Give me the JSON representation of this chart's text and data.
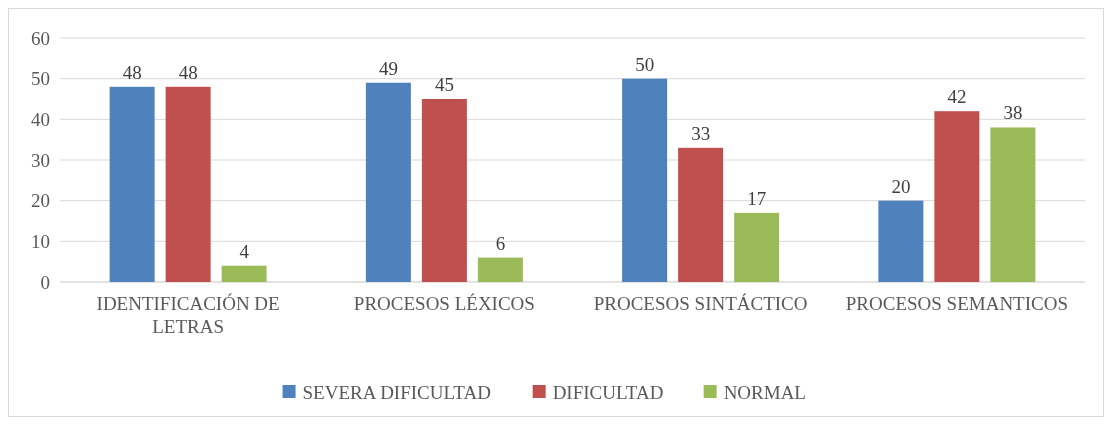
{
  "chart_data": {
    "type": "bar",
    "categories": [
      "IDENTIFICACIÓN DE LETRAS",
      "PROCESOS LÉXICOS",
      "PROCESOS SINTÁCTICO",
      "PROCESOS SEMANTICOS"
    ],
    "series": [
      {
        "name": "SEVERA DIFICULTAD",
        "color": "#4f81bd",
        "values": [
          48,
          49,
          50,
          20
        ]
      },
      {
        "name": "DIFICULTAD",
        "color": "#c0504d",
        "values": [
          48,
          45,
          33,
          42
        ]
      },
      {
        "name": "NORMAL",
        "color": "#9bbb59",
        "values": [
          4,
          6,
          17,
          38
        ]
      }
    ],
    "ylim": [
      0,
      60
    ],
    "yticks": [
      0,
      10,
      20,
      30,
      40,
      50,
      60
    ],
    "grid": "y",
    "legend": "bottom",
    "data_labels": true
  }
}
